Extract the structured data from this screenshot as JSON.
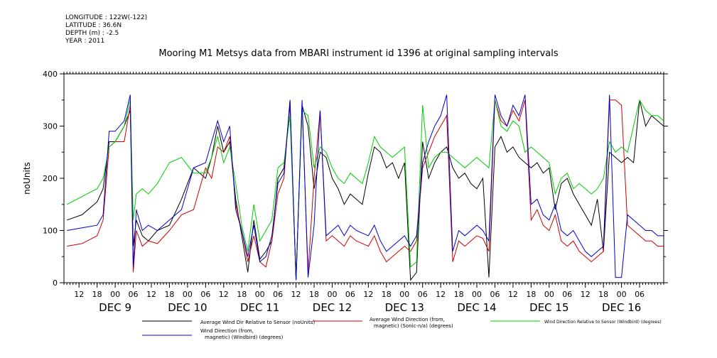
{
  "header": {
    "meta_lines": [
      "LONGITUDE : 122W(-122)",
      "LATITUDE : 36.6N",
      "DEPTH (m) : -2.5",
      "YEAR : 2011"
    ],
    "title": "Mooring M1 Metsys data from MBARI instrument id 1396 at original sampling intervals"
  },
  "chart_data": {
    "type": "line",
    "title": "Mooring M1 Metsys data from MBARI instrument id 1396 at original sampling intervals",
    "ylabel": "noUnits",
    "xlabel": "",
    "ylim": [
      0,
      400
    ],
    "y_ticks": [
      0,
      100,
      200,
      300,
      400
    ],
    "x_hour_ticks": [
      "12",
      "18",
      "00",
      "06",
      "12",
      "18",
      "00",
      "06",
      "12",
      "18",
      "00",
      "06",
      "12",
      "18",
      "00",
      "06",
      "12",
      "18",
      "00",
      "06",
      "12",
      "18",
      "00",
      "06",
      "12",
      "18",
      "00",
      "06",
      "12",
      "18",
      "00",
      "06"
    ],
    "x_day_labels": [
      "DEC 9",
      "DEC 10",
      "DEC 11",
      "DEC 12",
      "DEC 13",
      "DEC 14",
      "DEC 15",
      "DEC 16"
    ],
    "x_range_hours": [
      7,
      206
    ],
    "grid": false,
    "legend_position": "bottom",
    "series": [
      {
        "name": "Average Wind Dir Relative to Sensor (noUnits)",
        "color": "#000000",
        "x": [
          8,
          13,
          18,
          20,
          22,
          24,
          27,
          29,
          30,
          31,
          33,
          35,
          38,
          42,
          46,
          50,
          54,
          56,
          58,
          60,
          62,
          64,
          66,
          68,
          70,
          72,
          74,
          76,
          78,
          80,
          82,
          84,
          86,
          88,
          90,
          92,
          94,
          96,
          98,
          100,
          102,
          104,
          106,
          108,
          110,
          112,
          114,
          116,
          118,
          120,
          122,
          124,
          126,
          128,
          130,
          132,
          134,
          136,
          138,
          140,
          142,
          144,
          146,
          148,
          150,
          152,
          154,
          156,
          158,
          160,
          162,
          164,
          166,
          168,
          170,
          172,
          174,
          176,
          178,
          180,
          182,
          184,
          186,
          188,
          190,
          192,
          194,
          196,
          198,
          200,
          202,
          204,
          206
        ],
        "y": [
          120,
          130,
          155,
          180,
          270,
          270,
          300,
          330,
          70,
          120,
          90,
          80,
          100,
          110,
          160,
          220,
          200,
          240,
          300,
          250,
          270,
          160,
          90,
          20,
          120,
          45,
          60,
          80,
          200,
          220,
          340,
          5,
          340,
          300,
          180,
          250,
          240,
          200,
          180,
          150,
          170,
          160,
          150,
          210,
          260,
          250,
          220,
          230,
          200,
          230,
          5,
          20,
          270,
          200,
          230,
          250,
          260,
          220,
          200,
          210,
          190,
          180,
          200,
          10,
          260,
          280,
          250,
          260,
          240,
          230,
          220,
          230,
          210,
          220,
          140,
          190,
          200,
          170,
          150,
          130,
          110,
          160,
          60,
          250,
          240,
          230,
          240,
          230,
          350,
          300,
          320,
          310,
          300
        ]
      },
      {
        "name": "Average Wind Direction (from, magnetic) (Sonic-n/a) (degrees)",
        "color": "#cc0000",
        "x": [
          8,
          13,
          18,
          20,
          22,
          24,
          27,
          29,
          30,
          31,
          33,
          35,
          38,
          42,
          46,
          50,
          54,
          56,
          58,
          60,
          62,
          64,
          66,
          68,
          70,
          72,
          74,
          76,
          78,
          80,
          82,
          84,
          86,
          88,
          90,
          92,
          94,
          96,
          98,
          100,
          102,
          104,
          106,
          108,
          110,
          112,
          114,
          116,
          118,
          120,
          122,
          124,
          126,
          128,
          130,
          132,
          134,
          136,
          138,
          140,
          142,
          144,
          146,
          148,
          150,
          152,
          154,
          156,
          158,
          160,
          162,
          164,
          166,
          168,
          170,
          172,
          174,
          176,
          178,
          180,
          182,
          184,
          186,
          188,
          190,
          192,
          194,
          196,
          198,
          200,
          202,
          204,
          206
        ],
        "y": [
          70,
          75,
          90,
          120,
          260,
          270,
          270,
          340,
          20,
          100,
          70,
          80,
          75,
          100,
          130,
          140,
          220,
          200,
          260,
          250,
          280,
          150,
          100,
          40,
          90,
          40,
          30,
          80,
          170,
          200,
          350,
          5,
          340,
          20,
          200,
          330,
          80,
          90,
          80,
          70,
          90,
          80,
          75,
          70,
          90,
          60,
          40,
          50,
          60,
          70,
          60,
          80,
          220,
          250,
          280,
          300,
          320,
          40,
          80,
          70,
          80,
          90,
          85,
          60,
          350,
          310,
          300,
          330,
          310,
          350,
          120,
          140,
          110,
          100,
          130,
          80,
          70,
          80,
          60,
          50,
          40,
          50,
          60,
          350,
          350,
          340,
          110,
          100,
          90,
          80,
          80,
          70,
          70
        ]
      },
      {
        "name": "Wind Direction Relative to Sensor (Windbird) (degrees)",
        "color": "#00cc00",
        "x": [
          8,
          13,
          18,
          20,
          22,
          24,
          27,
          29,
          30,
          31,
          33,
          35,
          38,
          42,
          46,
          50,
          54,
          56,
          58,
          60,
          62,
          64,
          66,
          68,
          70,
          72,
          74,
          76,
          78,
          80,
          82,
          84,
          86,
          88,
          90,
          92,
          94,
          96,
          98,
          100,
          102,
          104,
          106,
          108,
          110,
          112,
          114,
          116,
          118,
          120,
          122,
          124,
          126,
          128,
          130,
          132,
          134,
          136,
          138,
          140,
          142,
          144,
          146,
          148,
          150,
          152,
          154,
          156,
          158,
          160,
          162,
          164,
          166,
          168,
          170,
          172,
          174,
          176,
          178,
          180,
          182,
          184,
          186,
          188,
          190,
          192,
          194,
          196,
          198,
          200,
          202,
          204,
          206
        ],
        "y": [
          150,
          165,
          180,
          200,
          260,
          270,
          300,
          350,
          120,
          170,
          180,
          170,
          190,
          230,
          240,
          210,
          210,
          240,
          280,
          230,
          260,
          190,
          110,
          60,
          150,
          80,
          100,
          120,
          220,
          230,
          320,
          10,
          330,
          320,
          220,
          260,
          250,
          220,
          200,
          190,
          210,
          200,
          190,
          230,
          280,
          260,
          250,
          240,
          250,
          260,
          30,
          40,
          340,
          220,
          240,
          250,
          250,
          240,
          230,
          220,
          230,
          240,
          230,
          220,
          350,
          300,
          290,
          310,
          300,
          250,
          260,
          250,
          240,
          230,
          170,
          200,
          210,
          180,
          190,
          180,
          170,
          180,
          200,
          270,
          250,
          260,
          250,
          300,
          350,
          330,
          320,
          320,
          310
        ]
      },
      {
        "name": "Wind Direction (from, magnetic) (Windbird) (degrees)",
        "color": "#0000cc",
        "x": [
          8,
          13,
          18,
          20,
          22,
          24,
          27,
          29,
          30,
          31,
          33,
          35,
          38,
          42,
          46,
          50,
          54,
          56,
          58,
          60,
          62,
          64,
          66,
          68,
          70,
          72,
          74,
          76,
          78,
          80,
          82,
          84,
          86,
          88,
          90,
          92,
          94,
          96,
          98,
          100,
          102,
          104,
          106,
          108,
          110,
          112,
          114,
          116,
          118,
          120,
          122,
          124,
          126,
          128,
          130,
          132,
          134,
          136,
          138,
          140,
          142,
          144,
          146,
          148,
          150,
          152,
          154,
          156,
          158,
          160,
          162,
          164,
          166,
          168,
          170,
          172,
          174,
          176,
          178,
          180,
          182,
          184,
          186,
          188,
          190,
          192,
          194,
          196,
          198,
          200,
          202,
          204,
          206
        ],
        "y": [
          100,
          105,
          110,
          130,
          290,
          290,
          310,
          360,
          30,
          140,
          100,
          110,
          100,
          120,
          140,
          220,
          230,
          270,
          310,
          270,
          300,
          140,
          100,
          50,
          110,
          40,
          50,
          90,
          190,
          210,
          350,
          5,
          350,
          10,
          110,
          330,
          90,
          100,
          110,
          90,
          110,
          100,
          95,
          90,
          110,
          80,
          60,
          70,
          80,
          90,
          70,
          90,
          230,
          270,
          300,
          320,
          360,
          60,
          100,
          90,
          100,
          110,
          100,
          80,
          360,
          320,
          300,
          340,
          320,
          360,
          150,
          160,
          130,
          120,
          150,
          100,
          90,
          100,
          80,
          60,
          50,
          60,
          70,
          360,
          10,
          10,
          130,
          120,
          110,
          100,
          100,
          90,
          90
        ]
      }
    ]
  }
}
